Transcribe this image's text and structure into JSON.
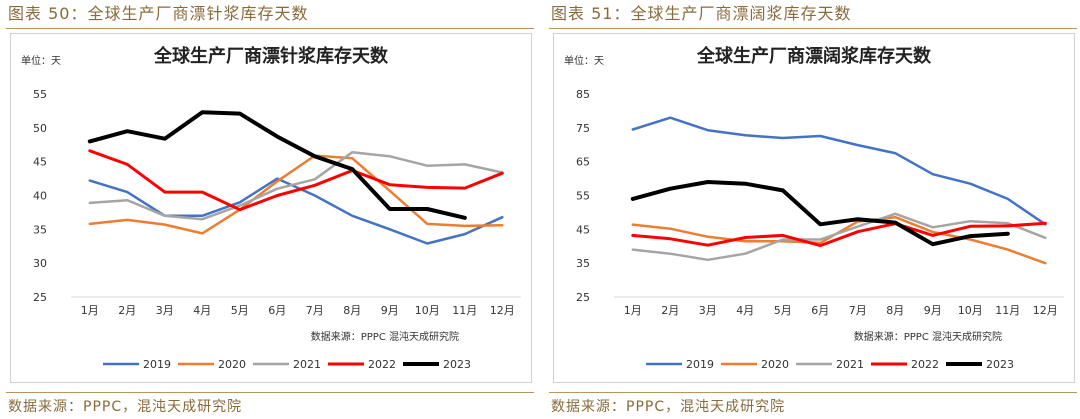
{
  "figures": [
    {
      "caption": "图表 50：全球生产厂商漂针浆库存天数",
      "source": "数据来源：PPPC，混沌天成研究院"
    },
    {
      "caption": "图表 51：全球生产厂商漂阔浆库存天数",
      "source": "数据来源：PPPC，混沌天成研究院"
    }
  ],
  "chart_data": [
    {
      "type": "line",
      "title": "全球生产厂商漂针浆库存天数",
      "unit_label": "单位：天",
      "source_note": "数据来源：PPPC  混沌天成研究院",
      "categories": [
        "1月",
        "2月",
        "3月",
        "4月",
        "5月",
        "6月",
        "7月",
        "8月",
        "9月",
        "10月",
        "11月",
        "12月"
      ],
      "ylim": [
        25,
        55
      ],
      "yticks": [
        25,
        30,
        35,
        40,
        45,
        50,
        55
      ],
      "legend_position": "bottom",
      "grid": false,
      "series": [
        {
          "name": "2019",
          "color": "#4472C4",
          "width": 2.5,
          "values": [
            42.2,
            40.5,
            37.0,
            37.0,
            39.0,
            42.5,
            40.0,
            37.0,
            35.0,
            32.9,
            34.3,
            36.8
          ]
        },
        {
          "name": "2020",
          "color": "#ED7D31",
          "width": 2.5,
          "values": [
            35.8,
            36.4,
            35.7,
            34.4,
            37.9,
            42.1,
            45.9,
            45.5,
            40.7,
            35.8,
            35.5,
            35.6
          ]
        },
        {
          "name": "2021",
          "color": "#A5A5A5",
          "width": 2.5,
          "values": [
            38.9,
            39.3,
            37.0,
            36.5,
            38.5,
            41.0,
            42.4,
            46.4,
            45.8,
            44.4,
            44.6,
            43.4
          ]
        },
        {
          "name": "2022",
          "color": "#FF0000",
          "width": 3,
          "values": [
            46.6,
            44.6,
            40.5,
            40.5,
            37.9,
            40.0,
            41.5,
            43.7,
            41.6,
            41.2,
            41.1,
            43.3
          ]
        },
        {
          "name": "2023",
          "color": "#000000",
          "width": 4,
          "values": [
            48.0,
            49.5,
            48.4,
            52.3,
            52.1,
            48.7,
            45.8,
            43.9,
            38.0,
            38.0,
            36.7,
            null
          ]
        }
      ]
    },
    {
      "type": "line",
      "title": "全球生产厂商漂阔浆库存天数",
      "unit_label": "单位：天",
      "source_note": "数据来源：PPPC  混沌天成研究院",
      "categories": [
        "1月",
        "2月",
        "3月",
        "4月",
        "5月",
        "6月",
        "7月",
        "8月",
        "9月",
        "10月",
        "11月",
        "12月"
      ],
      "ylim": [
        25,
        85
      ],
      "yticks": [
        25,
        35,
        45,
        55,
        65,
        75,
        85
      ],
      "legend_position": "bottom",
      "grid": false,
      "series": [
        {
          "name": "2019",
          "color": "#4472C4",
          "width": 2.5,
          "values": [
            74.5,
            78.0,
            74.3,
            72.8,
            72.0,
            72.6,
            69.9,
            67.5,
            61.3,
            58.5,
            54.0,
            46.5
          ]
        },
        {
          "name": "2020",
          "color": "#ED7D31",
          "width": 2.5,
          "values": [
            46.4,
            45.2,
            42.8,
            41.5,
            41.5,
            41.0,
            47.3,
            48.6,
            44.2,
            42.0,
            39.0,
            35.0
          ]
        },
        {
          "name": "2021",
          "color": "#A5A5A5",
          "width": 2.5,
          "values": [
            39.0,
            37.8,
            36.0,
            37.8,
            42.0,
            42.0,
            45.8,
            49.6,
            45.6,
            47.4,
            46.8,
            42.5
          ]
        },
        {
          "name": "2022",
          "color": "#FF0000",
          "width": 3,
          "values": [
            43.2,
            42.2,
            40.3,
            42.6,
            43.2,
            40.2,
            44.3,
            46.7,
            43.2,
            45.9,
            46.0,
            46.8
          ]
        },
        {
          "name": "2023",
          "color": "#000000",
          "width": 4,
          "values": [
            54.0,
            57.0,
            59.0,
            58.5,
            56.5,
            46.5,
            48.0,
            47.0,
            40.6,
            43.0,
            43.7,
            null
          ]
        }
      ]
    }
  ]
}
